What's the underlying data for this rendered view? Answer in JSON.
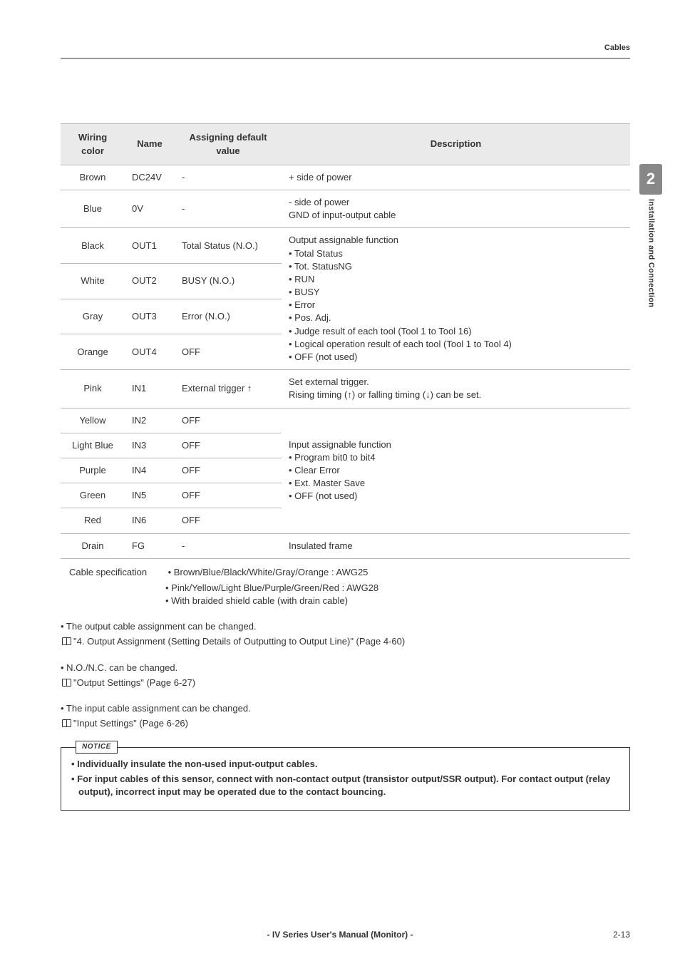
{
  "header": {
    "section": "Cables"
  },
  "sidebar": {
    "chapter": "2",
    "title": "Installation and Connection"
  },
  "table": {
    "headers": {
      "col1": "Wiring color",
      "col2": "Name",
      "col3": "Assigning default value",
      "col4": "Description"
    },
    "rows": [
      {
        "color": "Brown",
        "name": "DC24V",
        "assign": "-",
        "desc": "+ side of power"
      },
      {
        "color": "Blue",
        "name": "0V",
        "assign": "-",
        "desc": "- side of power\nGND of input-output cable"
      },
      {
        "color": "Black",
        "name": "OUT1",
        "assign": "Total Status (N.O.)"
      },
      {
        "color": "White",
        "name": "OUT2",
        "assign": "BUSY (N.O.)"
      },
      {
        "color": "Gray",
        "name": "OUT3",
        "assign": "Error (N.O.)"
      },
      {
        "color": "Orange",
        "name": "OUT4",
        "assign": "OFF"
      },
      {
        "color": "Pink",
        "name": "IN1",
        "assign": "External trigger ↑",
        "desc": "Set external trigger.\nRising timing (↑) or falling timing (↓) can be set."
      },
      {
        "color": "Yellow",
        "name": "IN2",
        "assign": "OFF"
      },
      {
        "color": "Light Blue",
        "name": "IN3",
        "assign": "OFF"
      },
      {
        "color": "Purple",
        "name": "IN4",
        "assign": "OFF"
      },
      {
        "color": "Green",
        "name": "IN5",
        "assign": "OFF"
      },
      {
        "color": "Red",
        "name": "IN6",
        "assign": "OFF"
      },
      {
        "color": "Drain",
        "name": "FG",
        "assign": "-",
        "desc": "Insulated frame"
      }
    ],
    "out_desc": "Output assignable function\n• Total Status\n• Tot. StatusNG\n• RUN\n• BUSY\n• Error\n• Pos. Adj.\n• Judge result of each tool (Tool 1 to Tool 16)\n• Logical operation result of each tool (Tool 1 to Tool 4)\n• OFF (not used)",
    "in_desc": "Input assignable function\n• Program bit0 to bit4\n• Clear Error\n• Ext. Master Save\n• OFF (not used)"
  },
  "cable_spec": {
    "label": "Cable specification",
    "lines": [
      "• Brown/Blue/Black/White/Gray/Orange : AWG25",
      "• Pink/Yellow/Light Blue/Purple/Green/Red : AWG28",
      "• With braided shield cable (with drain cable)"
    ]
  },
  "bullets": [
    {
      "text": "• The output cable assignment can be changed.",
      "ref": "\"4. Output Assignment (Setting Details of Outputting to Output Line)\" (Page 4-60)"
    },
    {
      "text": "• N.O./N.C. can be changed.",
      "ref": "\"Output Settings\" (Page 6-27)"
    },
    {
      "text": "• The input cable assignment can be changed.",
      "ref": "\"Input Settings\" (Page 6-26)"
    }
  ],
  "notice": {
    "tag": "NOTICE",
    "lines": [
      "• Individually insulate the non-used input-output cables.",
      "• For input cables of this sensor, connect with non-contact output (transistor output/SSR output). For contact output (relay output), incorrect input may be operated due to the contact bouncing."
    ]
  },
  "footer": {
    "title": "- IV Series User's Manual (Monitor) -",
    "page": "2-13"
  }
}
